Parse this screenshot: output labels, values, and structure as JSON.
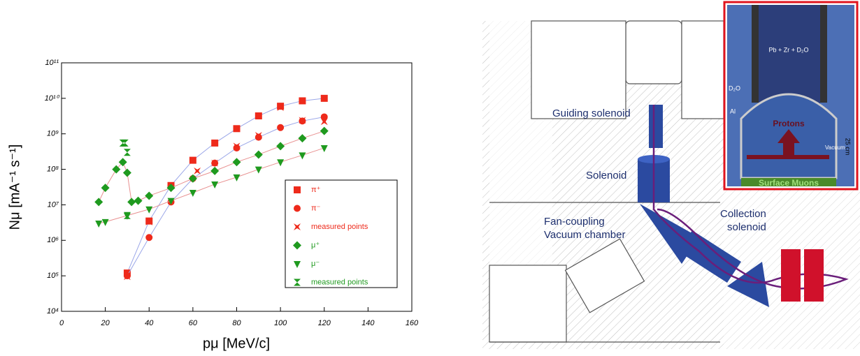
{
  "chart_data": {
    "type": "scatter",
    "x_label": "pμ [MeV/c]",
    "y_label": "Nμ [mA⁻¹ s⁻¹]",
    "xlim": [
      0,
      160
    ],
    "xticks": [
      0,
      20,
      40,
      60,
      80,
      100,
      120,
      140,
      160
    ],
    "ylim": [
      10000,
      100000000000
    ],
    "log_y": true,
    "yticks": [
      {
        "value": 10000,
        "label": "10⁴"
      },
      {
        "value": 100000,
        "label": "10⁵"
      },
      {
        "value": 1000000,
        "label": "10⁶"
      },
      {
        "value": 10000000,
        "label": "10⁷"
      },
      {
        "value": 100000000,
        "label": "10⁸"
      },
      {
        "value": 1000000000,
        "label": "10⁹"
      },
      {
        "value": 10000000000,
        "label": "10¹⁰"
      },
      {
        "value": 100000000000,
        "label": "10¹¹"
      }
    ],
    "legend": "lower right",
    "series": [
      {
        "name": "π⁺",
        "color": "#ee2a1b",
        "marker": "square",
        "line_color": "#9aa6e8",
        "x": [
          30,
          40,
          50,
          60,
          70,
          80,
          90,
          100,
          110,
          120
        ],
        "values": [
          120000,
          3500000,
          35000000,
          180000000,
          550000000,
          1400000000,
          3200000000,
          6000000000,
          8500000000,
          10000000000
        ]
      },
      {
        "name": "π⁻",
        "color": "#ee2a1b",
        "marker": "circle",
        "line_color": "#9aa6e8",
        "x": [
          30,
          40,
          50,
          60,
          70,
          80,
          90,
          100,
          110,
          120
        ],
        "values": [
          100000,
          1200000,
          12000000,
          55000000,
          150000000,
          400000000,
          800000000,
          1500000000,
          2300000000,
          3000000000
        ]
      },
      {
        "name": "measured points",
        "color": "#ee2a1b",
        "marker": "bowtie",
        "x": [
          30,
          40,
          62,
          70,
          80,
          90,
          100,
          110,
          120
        ],
        "values": [
          95000,
          3300000,
          90000000,
          150000000,
          450000000,
          900000000,
          5500000000,
          2400000000,
          2200000000
        ]
      },
      {
        "name": "μ⁺",
        "color": "#1f9a1f",
        "marker": "diamond",
        "line_color": "#e89090",
        "x": [
          17,
          20,
          25,
          28,
          30,
          32,
          35,
          40,
          50,
          60,
          70,
          80,
          90,
          100,
          110,
          120
        ],
        "values": [
          12000000,
          30000000,
          100000000,
          160000000,
          80000000,
          12000000,
          13000000,
          18000000,
          30000000,
          55000000,
          90000000,
          160000000,
          260000000,
          450000000,
          750000000,
          1200000000
        ]
      },
      {
        "name": "μ⁻",
        "color": "#1f9a1f",
        "marker": "triangle",
        "line_color": "#e89090",
        "x": [
          17,
          20,
          30,
          40,
          50,
          60,
          70,
          80,
          90,
          100,
          110,
          120
        ],
        "values": [
          3000000,
          3300000,
          5000000,
          7500000,
          13000000,
          22000000,
          38000000,
          60000000,
          100000000,
          160000000,
          250000000,
          400000000
        ]
      },
      {
        "name": "measured points",
        "color": "#1f9a1f",
        "marker": "hourglass",
        "x": [
          28,
          29,
          30,
          30
        ],
        "values": [
          550000000,
          550000000,
          300000000,
          5000000
        ]
      }
    ]
  },
  "diagram": {
    "guiding": "Guiding solenoid",
    "solenoid": "Solenoid",
    "fan1": "Fan-coupling",
    "fan2": "Vacuum chamber",
    "coll1": "Collection",
    "coll2": "solenoid",
    "inset": {
      "target": "Pb + Zr + D₂O",
      "d2o": "D₂O",
      "al": "Al",
      "protons": "Protons",
      "vacuum": "Vacuum",
      "scale": "25 cm",
      "muons": "Surface Muons"
    }
  }
}
